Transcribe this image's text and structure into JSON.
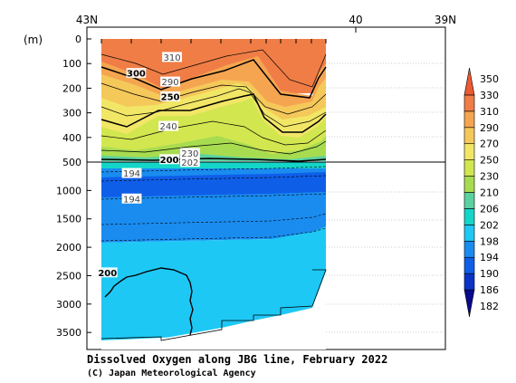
{
  "chart_data": {
    "type": "heatmap",
    "title": "Dissolved Oxygen along JBG line, February 2022",
    "credit": "(C) Japan Meteorological Agency",
    "y_unit": "(m)",
    "x_axis": {
      "ticks": [
        {
          "label": "43N",
          "lat": 43
        },
        {
          "label": "40",
          "lat": 40
        },
        {
          "label": "39N",
          "lat": 39
        }
      ],
      "range": [
        43,
        39
      ]
    },
    "y_axis_upper": {
      "range": [
        0,
        500
      ],
      "ticks": [
        0,
        100,
        200,
        300,
        400,
        500
      ]
    },
    "y_axis_lower": {
      "range": [
        500,
        3800
      ],
      "ticks": [
        1000,
        1500,
        2000,
        2500,
        3000,
        3500
      ]
    },
    "colorbar": {
      "levels": [
        182,
        186,
        190,
        194,
        198,
        202,
        206,
        210,
        230,
        250,
        270,
        290,
        310,
        330,
        350
      ],
      "colors": [
        "#0a0a8c",
        "#0b33c8",
        "#0f5ee8",
        "#1a8cf0",
        "#1ec8f5",
        "#14d6c8",
        "#5ad2a0",
        "#a8dc50",
        "#d2e650",
        "#f2e666",
        "#f5c85a",
        "#f5a550",
        "#f07d46",
        "#eb5a32"
      ]
    },
    "contour_labels": [
      {
        "text": "310",
        "lat": 42.05,
        "depth": 75,
        "boxed": true
      },
      {
        "text": "300",
        "lat": 42.45,
        "depth": 140,
        "boxed": false
      },
      {
        "text": "290",
        "lat": 42.07,
        "depth": 175,
        "boxed": true
      },
      {
        "text": "250",
        "lat": 42.07,
        "depth": 235,
        "boxed": false
      },
      {
        "text": "240",
        "lat": 42.09,
        "depth": 355,
        "boxed": true
      },
      {
        "text": "230",
        "lat": 41.85,
        "depth": 465,
        "boxed": true
      },
      {
        "text": "200",
        "lat": 42.08,
        "depth": 490,
        "boxed": false
      },
      {
        "text": "202",
        "lat": 41.85,
        "depth": 505,
        "boxed": true
      },
      {
        "text": "194",
        "lat": 42.5,
        "depth": 700,
        "boxed": true
      },
      {
        "text": "194",
        "lat": 42.5,
        "depth": 1150,
        "boxed": true
      },
      {
        "text": "200",
        "lat": 42.77,
        "depth": 2450,
        "boxed": false
      }
    ]
  }
}
